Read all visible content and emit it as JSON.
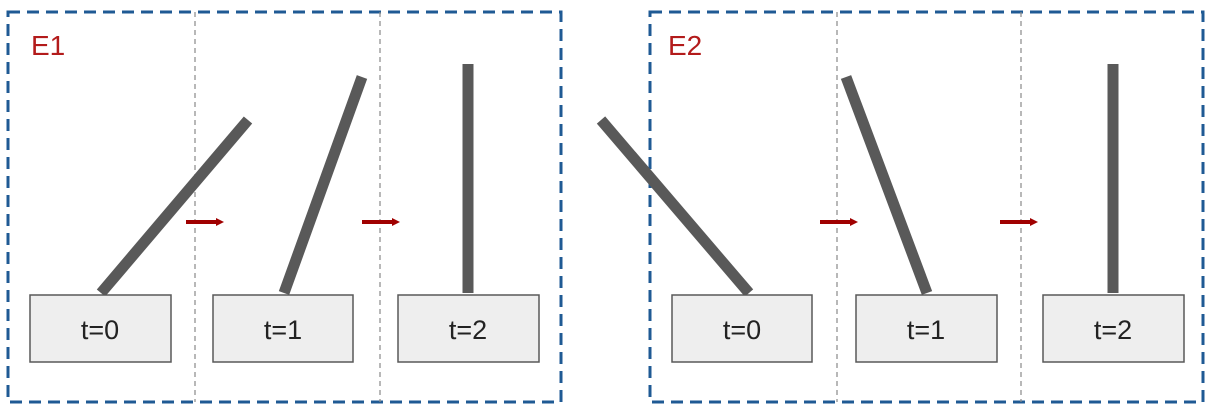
{
  "colors": {
    "frame": "#1f5a94",
    "episode_label": "#b31b1b",
    "arrow": "#a00000",
    "pole": "#595959",
    "cart_fill": "#eeeeee",
    "cart_stroke": "#595959",
    "divider": "#888888"
  },
  "episodes": [
    {
      "label": "E1",
      "steps": [
        {
          "time_label": "t=0",
          "pole_tilt": "right"
        },
        {
          "time_label": "t=1",
          "pole_tilt": "slightly-right"
        },
        {
          "time_label": "t=2",
          "pole_tilt": "upright"
        }
      ]
    },
    {
      "label": "E2",
      "steps": [
        {
          "time_label": "t=0",
          "pole_tilt": "left"
        },
        {
          "time_label": "t=1",
          "pole_tilt": "slightly-left"
        },
        {
          "time_label": "t=2",
          "pole_tilt": "upright"
        }
      ]
    }
  ],
  "arrow_icon": "right-arrow-icon"
}
